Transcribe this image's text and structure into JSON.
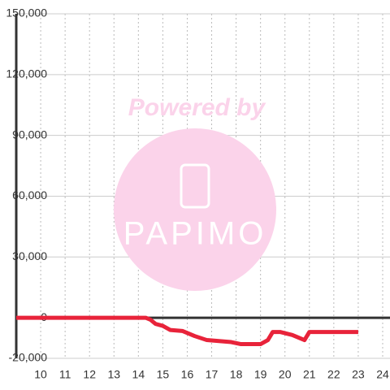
{
  "chart_data": {
    "type": "line",
    "annotations": [
      "Powered by",
      "PAPIMO"
    ],
    "x": [
      9,
      14.3,
      14.5,
      14.7,
      15,
      15.3,
      15.8,
      16.3,
      16.8,
      17.3,
      17.8,
      18.2,
      18.5,
      19,
      19.3,
      19.5,
      19.8,
      20.3,
      20.8,
      21,
      21.5,
      23
    ],
    "series": [
      {
        "color": "#e8233a",
        "values": [
          0,
          0,
          -1000,
          -3000,
          -4000,
          -6000,
          -6500,
          -9000,
          -11000,
          -11500,
          -12000,
          -13000,
          -13000,
          -13000,
          -11000,
          -7000,
          -7000,
          -8500,
          -11000,
          -7000,
          -7000,
          -7000
        ]
      }
    ],
    "xlim": [
      9,
      24.3
    ],
    "xticks": [
      10,
      11,
      12,
      13,
      14,
      15,
      16,
      17,
      18,
      19,
      20,
      21,
      22,
      23,
      24
    ],
    "ylim": [
      -20000,
      150000
    ],
    "yticks": [
      {
        "value": -20000,
        "label": "-20,000"
      },
      0,
      {
        "value": 30000,
        "label": "30,000"
      },
      {
        "value": 60000,
        "label": "60,000"
      },
      {
        "value": 90000,
        "label": "90,000"
      },
      {
        "value": 120000,
        "label": "120,000"
      },
      {
        "value": 150000,
        "label": "150,000"
      }
    ],
    "grid": true
  }
}
